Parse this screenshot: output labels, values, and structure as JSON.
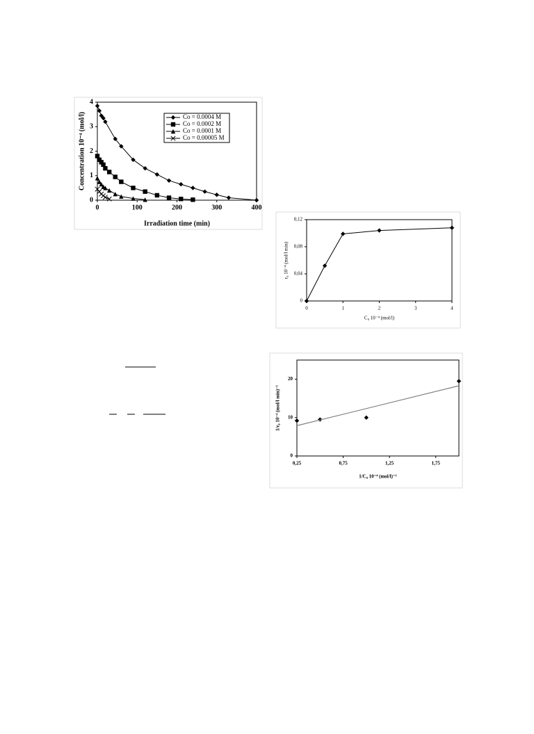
{
  "chart_data": [
    {
      "type": "line",
      "x_label": "Irradiation time (min)",
      "y_label": "Concentration 10⁻⁴ (mol/l)",
      "xlim": [
        0,
        400
      ],
      "xticks": [
        0,
        100,
        200,
        300,
        400
      ],
      "ylim": [
        0,
        4
      ],
      "yticks": [
        0,
        1,
        2,
        3,
        4
      ],
      "legend": "upper right",
      "series": [
        {
          "name": "Co = 0.0004 M",
          "color": "#000000",
          "marker": "diamond",
          "x": [
            0,
            5,
            10,
            15,
            20,
            45,
            60,
            90,
            120,
            150,
            180,
            210,
            240,
            270,
            300,
            330,
            400
          ],
          "values": [
            3.85,
            3.65,
            3.45,
            3.35,
            3.2,
            2.5,
            2.2,
            1.65,
            1.3,
            1.05,
            0.8,
            0.65,
            0.5,
            0.35,
            0.22,
            0.1,
            0
          ]
        },
        {
          "name": "Co = 0.0002 M",
          "color": "#000000",
          "marker": "square",
          "x": [
            0,
            5,
            10,
            15,
            20,
            30,
            45,
            60,
            90,
            120,
            150,
            180,
            210,
            240
          ],
          "values": [
            1.8,
            1.65,
            1.55,
            1.45,
            1.3,
            1.15,
            0.95,
            0.75,
            0.5,
            0.35,
            0.2,
            0.1,
            0.05,
            0.02
          ]
        },
        {
          "name": "Co = 0.0001 M",
          "color": "#000000",
          "marker": "triangle",
          "x": [
            0,
            5,
            10,
            15,
            20,
            30,
            45,
            60,
            90,
            120
          ],
          "values": [
            0.9,
            0.75,
            0.65,
            0.55,
            0.5,
            0.4,
            0.25,
            0.15,
            0.07,
            0.02
          ]
        },
        {
          "name": "Co = 0.00005 M",
          "color": "#000000",
          "marker": "x",
          "x": [
            0,
            5,
            10,
            15,
            20,
            30
          ],
          "values": [
            0.45,
            0.35,
            0.25,
            0.18,
            0.12,
            0.05
          ]
        }
      ]
    },
    {
      "type": "line",
      "x_label": "C₀ 10⁻⁴ (mol/l)",
      "y_label": "r₀ 10⁻⁴ (mol/l min)",
      "xlim": [
        0,
        4
      ],
      "xticks": [
        0,
        1,
        2,
        3,
        4
      ],
      "ylim": [
        0,
        0.12
      ],
      "yticks": [
        0,
        {
          "value": 0.04,
          "label": "0,04"
        },
        {
          "value": 0.08,
          "label": "0,08"
        },
        {
          "value": 0.12,
          "label": "0,12"
        }
      ],
      "color": "#000000",
      "marker": "diamond",
      "x": [
        0,
        0.5,
        1,
        2,
        4
      ],
      "values": [
        0,
        0.052,
        0.099,
        0.104,
        0.108
      ]
    },
    {
      "type": "scatter",
      "x_label": "1/C₀ 10⁻⁴ (mol/l)⁻¹",
      "y_label": "1/r₀ 10⁻⁴ (mol/l min)⁻¹",
      "xlim": [
        0.25,
        2.0
      ],
      "xticks": [
        {
          "value": 0.25,
          "label": "0,25"
        },
        {
          "value": 0.75,
          "label": "0,75"
        },
        {
          "value": 1.25,
          "label": "1,25"
        },
        {
          "value": 1.75,
          "label": "1,75"
        }
      ],
      "ylim": [
        0,
        25
      ],
      "yticks": [
        0,
        10,
        20
      ],
      "color": "#000000",
      "marker": "diamond",
      "x": [
        0.25,
        0.5,
        1.0,
        2.0
      ],
      "values": [
        9.2,
        9.5,
        10,
        19.5
      ],
      "fit_line": {
        "color": "#808080",
        "x": [
          0.25,
          2.0
        ],
        "values": [
          7.9,
          18.3
        ]
      }
    }
  ]
}
